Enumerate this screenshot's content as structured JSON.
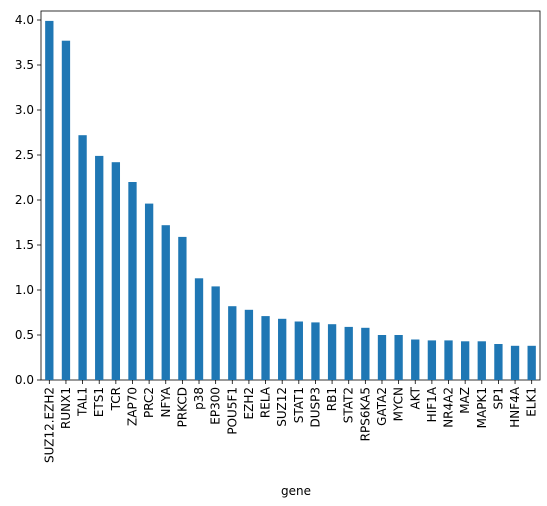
{
  "chart_data": {
    "type": "bar",
    "title": "",
    "xlabel": "gene",
    "ylabel": "",
    "ylim": [
      0,
      4.1
    ],
    "yticks": [
      "0.0",
      "0.5",
      "1.0",
      "1.5",
      "2.0",
      "2.5",
      "3.0",
      "3.5",
      "4.0"
    ],
    "grid": false,
    "legend": "none",
    "bar_color": "#1f77b4",
    "categories": [
      "SUZ12.EZH2",
      "RUNX1",
      "TAL1",
      "ETS1",
      "TCR",
      "ZAP70",
      "PRC2",
      "NFYA",
      "PRKCD",
      "p38",
      "EP300",
      "POU5F1",
      "EZH2",
      "RELA",
      "SUZ12",
      "STAT1",
      "DUSP3",
      "RB1",
      "STAT2",
      "RPS6KA5",
      "GATA2",
      "MYCN",
      "AKT",
      "HIF1A",
      "NR4A2",
      "MAZ",
      "MAPK1",
      "SP1",
      "HNF4A",
      "ELK1"
    ],
    "values": [
      3.99,
      3.77,
      2.72,
      2.49,
      2.42,
      2.2,
      1.96,
      1.72,
      1.59,
      1.13,
      1.04,
      0.82,
      0.78,
      0.71,
      0.68,
      0.65,
      0.64,
      0.62,
      0.59,
      0.58,
      0.5,
      0.5,
      0.45,
      0.44,
      0.44,
      0.43,
      0.43,
      0.4,
      0.38,
      0.38
    ]
  }
}
